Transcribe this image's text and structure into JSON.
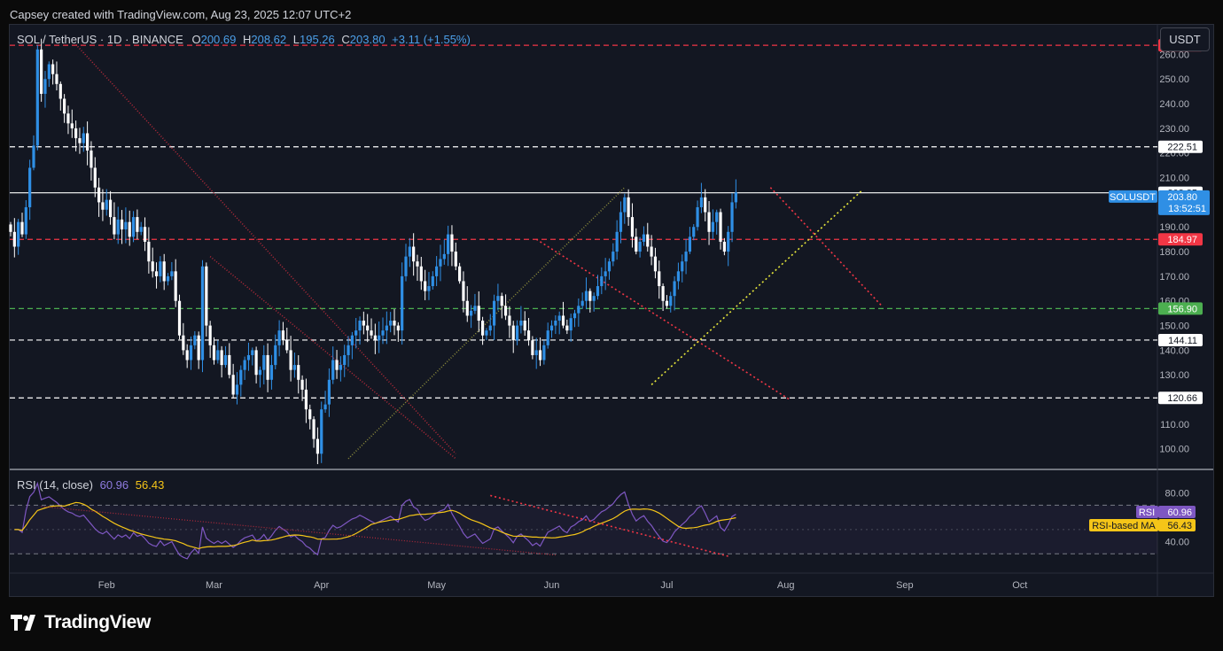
{
  "header": {
    "text": "Capsey created with TradingView.com, Aug 23, 2025 12:07 UTC+2"
  },
  "legend": {
    "symbol": "SOL / TetherUS · 1D · BINANCE",
    "open_label": "O",
    "open": "200.69",
    "high_label": "H",
    "high": "208.62",
    "low_label": "L",
    "low": "195.26",
    "close_label": "C",
    "close": "203.80",
    "change": "+3.11 (+1.55%)"
  },
  "rsi_legend": {
    "label": "RSI (14, close)",
    "rsi": "60.96",
    "ma": "56.43"
  },
  "currency_button": "USDT",
  "brand": "TradingView",
  "colors": {
    "up": "#2f8fe5",
    "down": "#ffffff",
    "background": "#131722",
    "rsi": "#7e57c2",
    "rsi_ma": "#f5c518",
    "red_line": "#f23645",
    "green_line": "#4caf50"
  },
  "chart_data": {
    "type": "candlestick",
    "symbol": "SOLUSDT",
    "timeframe": "1D",
    "exchange": "BINANCE",
    "ylim": [
      92,
      272
    ],
    "price_ticks": [
      "100.00",
      "110.00",
      "120.00",
      "130.00",
      "140.00",
      "150.00",
      "160.00",
      "170.00",
      "180.00",
      "190.00",
      "200.00",
      "210.00",
      "220.00",
      "230.00",
      "240.00",
      "250.00",
      "260.00"
    ],
    "price_tick_values": [
      100,
      110,
      120,
      130,
      140,
      150,
      160,
      170,
      180,
      190,
      200,
      210,
      220,
      230,
      240,
      250,
      260
    ],
    "x_labels": [
      "Feb",
      "Mar",
      "Apr",
      "May",
      "Jun",
      "Jul",
      "Aug",
      "Sep",
      "Oct"
    ],
    "x_label_days": [
      25,
      53,
      81,
      111,
      141,
      171,
      202,
      233,
      263
    ],
    "start_date": "2025-01-07",
    "horizontal_levels": [
      {
        "value": 263.7,
        "label": "263.70",
        "style": "red-dashed",
        "badge": "red"
      },
      {
        "value": 222.51,
        "label": "222.51",
        "style": "white-dashed",
        "badge": "white"
      },
      {
        "value": 203.85,
        "label": "203.85",
        "style": "white-solid",
        "badge": "white"
      },
      {
        "value": 184.97,
        "label": "184.97",
        "style": "red-dashed",
        "badge": "red"
      },
      {
        "value": 156.9,
        "label": "156.90",
        "style": "green-dashed",
        "badge": "green"
      },
      {
        "value": 144.11,
        "label": "144.11",
        "style": "white-dashed",
        "badge": "white"
      },
      {
        "value": 120.66,
        "label": "120.66",
        "style": "white-dashed",
        "badge": "white"
      }
    ],
    "last_price": {
      "symbol": "SOLUSDT",
      "value": "203.80",
      "countdown": "13:52:51"
    },
    "candles_close": [
      188,
      182,
      192,
      187,
      198,
      214,
      223,
      262,
      244,
      250,
      256,
      252,
      248,
      242,
      236,
      232,
      230,
      226,
      224,
      228,
      221,
      214,
      206,
      200,
      197,
      201,
      194,
      187,
      193,
      189,
      192,
      186,
      194,
      188,
      190,
      184,
      176,
      172,
      170,
      176,
      168,
      170,
      172,
      160,
      146,
      140,
      136,
      142,
      146,
      136,
      174,
      150,
      142,
      136,
      140,
      134,
      138,
      130,
      122,
      126,
      132,
      136,
      138,
      140,
      130,
      132,
      138,
      128,
      134,
      142,
      148,
      144,
      140,
      132,
      134,
      128,
      124,
      116,
      112,
      104,
      98,
      116,
      118,
      128,
      136,
      132,
      134,
      138,
      142,
      146,
      148,
      152,
      150,
      148,
      146,
      144,
      146,
      148,
      150,
      152,
      150,
      148,
      170,
      178,
      182,
      176,
      174,
      168,
      164,
      166,
      170,
      174,
      177,
      179,
      187,
      180,
      174,
      168,
      160,
      154,
      156,
      158,
      152,
      146,
      148,
      150,
      160,
      162,
      158,
      154,
      150,
      144,
      150,
      152,
      148,
      144,
      138,
      140,
      136,
      142,
      148,
      150,
      152,
      154,
      150,
      148,
      153,
      155,
      158,
      160,
      164,
      160,
      162,
      166,
      170,
      172,
      176,
      180,
      188,
      196,
      202,
      194,
      186,
      180,
      184,
      187,
      182,
      178,
      172,
      166,
      160,
      158,
      162,
      168,
      172,
      176,
      180,
      186,
      190,
      198,
      202,
      196,
      188,
      192,
      196,
      184,
      180,
      188,
      200,
      204
    ],
    "rsi_panel": {
      "title": "RSI (14, close)",
      "rsi_value": 60.96,
      "ma_value": 56.43,
      "ticks": [
        "80.00",
        "40.00"
      ],
      "tick_values": [
        80,
        40
      ],
      "band_upper": 70,
      "band_lower": 30,
      "badges": [
        {
          "label": "RSI",
          "value": "60.96"
        },
        {
          "label": "RSI-based MA",
          "value": "56.43"
        }
      ]
    }
  }
}
